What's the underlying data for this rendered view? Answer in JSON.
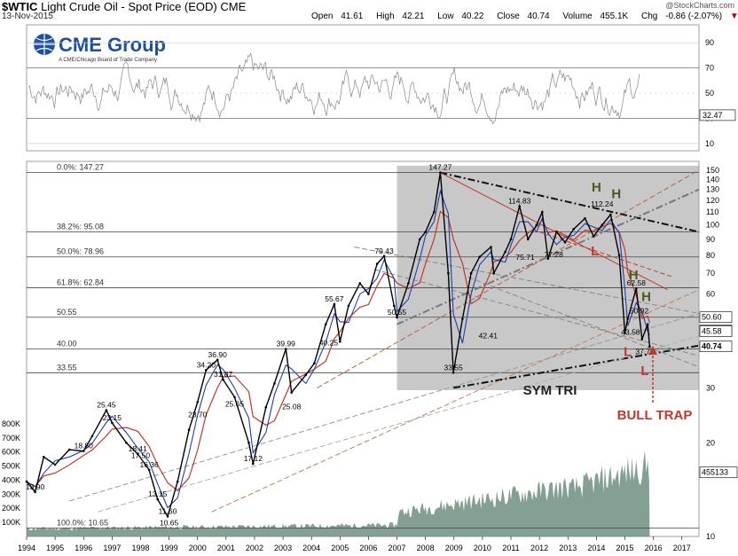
{
  "header": {
    "symbol": "$WTIC",
    "name": "Light Crude Oil - Spot Price (EOD)",
    "exchange": "CME",
    "date": "13-Nov-2015",
    "open_label": "Open",
    "open": "41.61",
    "high_label": "High",
    "high": "42.21",
    "low_label": "Low",
    "low": "40.22",
    "close_label": "Close",
    "close": "40.74",
    "volume_label": "Volume",
    "volume": "455.1K",
    "chg_label": "Chg",
    "chg": "-0.86 (-2.07%)",
    "chg_arrow": "▼",
    "watermark": "@StockCharts.com"
  },
  "logo": {
    "name": "CME Group",
    "tagline": "A CME/Chicago Board of Trade Company"
  },
  "colors": {
    "bg": "#ffffff",
    "price": "#000000",
    "ma_red": "#c0392b",
    "ma_blue": "#1f3fb0",
    "grid": "#444444",
    "shade": "#9a9a9a",
    "volume": "#6f8f7f",
    "annotation": "#c0392b",
    "hs": "#4a5a1a"
  },
  "chart_data": {
    "type": "line",
    "title": "$WTIC Light Crude Oil - Spot Price (EOD)",
    "yscale": "log",
    "ylim": [
      10,
      160
    ],
    "x_ticks": [
      "1994",
      "1995",
      "1996",
      "1997",
      "1998",
      "1999",
      "2000",
      "2001",
      "2002",
      "2003",
      "2004",
      "2005",
      "2006",
      "2007",
      "2008",
      "2009",
      "2010",
      "2011",
      "2012",
      "2013",
      "2014",
      "2015",
      "2016",
      "2017"
    ],
    "y_ticks": [
      "10",
      "20",
      "30",
      "40",
      "50",
      "60",
      "70",
      "80",
      "90",
      "100",
      "110",
      "120",
      "130",
      "140",
      "150"
    ],
    "rsi_ticks": [
      "90",
      "70",
      "50",
      "30",
      "10"
    ],
    "rsi_value": "32.47",
    "volume_ticks": [
      "100K",
      "200K",
      "300K",
      "400K",
      "500K",
      "600K",
      "700K",
      "800K"
    ],
    "volume_value": "455133",
    "price_tags": [
      "50.60",
      "45.85",
      "45.58",
      "40.74"
    ],
    "price": {
      "x": [
        1994.0,
        1994.3,
        1994.6,
        1995.0,
        1995.5,
        1996.0,
        1996.3,
        1996.8,
        1997.0,
        1997.5,
        1997.9,
        1998.3,
        1998.6,
        1998.95,
        1999.3,
        1999.7,
        2000.0,
        2000.3,
        2000.7,
        2000.9,
        2001.3,
        2001.8,
        2001.95,
        2002.4,
        2002.7,
        2003.1,
        2003.3,
        2003.8,
        2004.1,
        2004.5,
        2004.8,
        2005.0,
        2005.3,
        2005.7,
        2006.0,
        2006.3,
        2006.55,
        2006.9,
        2007.0,
        2007.4,
        2007.8,
        2008.0,
        2008.3,
        2008.52,
        2008.8,
        2008.98,
        2009.3,
        2009.6,
        2009.9,
        2010.3,
        2010.4,
        2010.8,
        2011.0,
        2011.3,
        2011.6,
        2011.9,
        2012.1,
        2012.3,
        2012.6,
        2012.9,
        2013.2,
        2013.6,
        2013.9,
        2014.2,
        2014.5,
        2014.8,
        2015.0,
        2015.1,
        2015.4,
        2015.6,
        2015.8,
        2015.87
      ],
      "y": [
        15,
        13.9,
        18,
        17,
        19,
        18.8,
        21,
        25.45,
        23.15,
        20,
        18.41,
        16.36,
        13.15,
        11.6,
        15,
        22,
        27,
        34.2,
        36.9,
        31.87,
        28,
        20,
        17.12,
        26,
        31,
        39.99,
        29,
        33,
        36,
        48,
        55.67,
        42.25,
        55,
        65,
        60,
        75,
        79.43,
        55,
        50.55,
        65,
        90,
        95,
        110,
        147.27,
        70,
        33.55,
        50,
        70,
        79,
        85,
        70,
        82,
        90,
        114.83,
        90,
        100,
        110,
        78,
        95,
        88,
        97,
        105,
        92,
        100,
        108,
        80,
        45,
        50,
        62.58,
        43,
        48,
        40.74
      ]
    },
    "annotations": [
      {
        "text": "147.27",
        "x": 2008.52,
        "y": 147.27
      },
      {
        "text": "114.83",
        "x": 2011.3,
        "y": 114.83
      },
      {
        "text": "112.24",
        "x": 2014.2,
        "y": 112.24
      },
      {
        "text": "79.43",
        "x": 2006.55,
        "y": 79.43
      },
      {
        "text": "75.71",
        "x": 2011.5,
        "y": 75.71
      },
      {
        "text": "77.28",
        "x": 2012.5,
        "y": 77.28
      },
      {
        "text": "62.58",
        "x": 2015.4,
        "y": 62.58
      },
      {
        "text": "50.92",
        "x": 2015.5,
        "y": 50.92
      },
      {
        "text": "55.67",
        "x": 2004.8,
        "y": 55.67
      },
      {
        "text": "50.55",
        "x": 2007.0,
        "y": 50.55
      },
      {
        "text": "42.41",
        "x": 2010.2,
        "y": 42.41
      },
      {
        "text": "43.58",
        "x": 2015.2,
        "y": 43.58
      },
      {
        "text": "37.75",
        "x": 2015.7,
        "y": 37.75
      },
      {
        "text": "33.55",
        "x": 2008.98,
        "y": 33.55
      },
      {
        "text": "39.99",
        "x": 2003.1,
        "y": 39.99
      },
      {
        "text": "40.25",
        "x": 2004.6,
        "y": 40.25
      },
      {
        "text": "36.90",
        "x": 2000.7,
        "y": 36.9
      },
      {
        "text": "34.20",
        "x": 2000.3,
        "y": 34.2
      },
      {
        "text": "31.87",
        "x": 2000.9,
        "y": 31.87
      },
      {
        "text": "25.65",
        "x": 2001.3,
        "y": 25.65
      },
      {
        "text": "25.08",
        "x": 2003.3,
        "y": 25.08
      },
      {
        "text": "23.70",
        "x": 2000.0,
        "y": 23.7
      },
      {
        "text": "25.45",
        "x": 1996.8,
        "y": 25.45
      },
      {
        "text": "23.15",
        "x": 1997.0,
        "y": 23.15
      },
      {
        "text": "18.80",
        "x": 1996.0,
        "y": 18.8
      },
      {
        "text": "17.50",
        "x": 1998.0,
        "y": 17.5
      },
      {
        "text": "18.41",
        "x": 1997.9,
        "y": 18.41
      },
      {
        "text": "16.36",
        "x": 1998.3,
        "y": 16.36
      },
      {
        "text": "17.12",
        "x": 2001.95,
        "y": 17.12
      },
      {
        "text": "13.90",
        "x": 1994.3,
        "y": 13.9
      },
      {
        "text": "13.15",
        "x": 1998.6,
        "y": 13.15
      },
      {
        "text": "11.60",
        "x": 1998.95,
        "y": 11.6
      },
      {
        "text": "10.65",
        "x": 1999.0,
        "y": 10.65
      }
    ],
    "fib_levels": [
      {
        "text": "0.0%: 147.27",
        "y": 147.27
      },
      {
        "text": "38.2%: 95.08",
        "y": 95.08
      },
      {
        "text": "50.0%: 78.96",
        "y": 78.96
      },
      {
        "text": "61.8%: 62.84",
        "y": 62.84
      },
      {
        "text": "50.55",
        "y": 50.55
      },
      {
        "text": "40.00",
        "y": 40.0
      },
      {
        "text": "33.55",
        "y": 33.55
      },
      {
        "text": "100.0%: 10.65",
        "y": 10.65
      }
    ],
    "markers": [
      {
        "text": "H",
        "x": 2014.0,
        "y": 128
      },
      {
        "text": "H",
        "x": 2014.7,
        "y": 122
      },
      {
        "text": "L",
        "x": 2013.95,
        "y": 80
      },
      {
        "text": "H",
        "x": 2015.3,
        "y": 67
      },
      {
        "text": "H",
        "x": 2015.75,
        "y": 57
      },
      {
        "text": "L",
        "x": 2015.1,
        "y": 38
      },
      {
        "text": "L",
        "x": 2015.7,
        "y": 33
      }
    ],
    "pattern_label": "SYM TRI",
    "callout_label": "BULL TRAP"
  }
}
